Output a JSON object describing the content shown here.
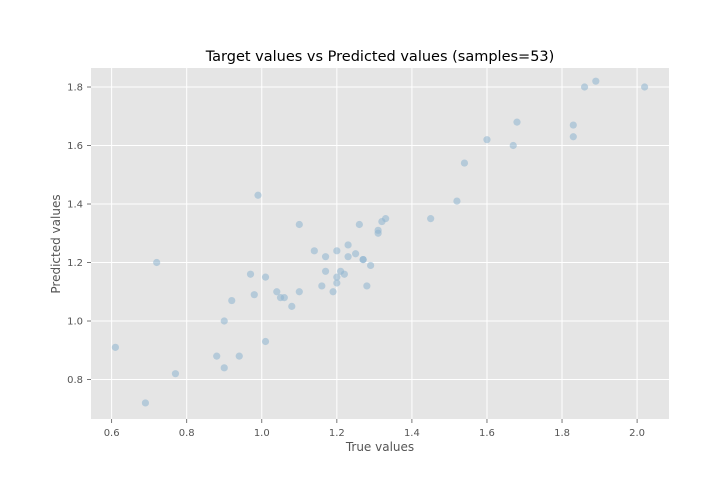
{
  "chart_data": {
    "type": "scatter",
    "title": "Target values vs Predicted values (samples=53)",
    "xlabel": "True values",
    "ylabel": "Predicted values",
    "xlim": [
      0.545,
      2.085
    ],
    "ylim": [
      0.665,
      1.865
    ],
    "xticks": [
      0.6,
      0.8,
      1.0,
      1.2,
      1.4,
      1.6,
      1.8,
      2.0
    ],
    "xtick_labels": [
      "0.6",
      "0.8",
      "1.0",
      "1.2",
      "1.4",
      "1.6",
      "1.8",
      "2.0"
    ],
    "yticks": [
      0.8,
      1.0,
      1.2,
      1.4,
      1.6,
      1.8
    ],
    "ytick_labels": [
      "0.8",
      "1.0",
      "1.2",
      "1.4",
      "1.6",
      "1.8"
    ],
    "grid": true,
    "style": "ggplot",
    "colors": {
      "axes_bg": "#e5e5e5",
      "grid": "#ffffff",
      "marker": "#8eb4cf"
    },
    "x": [
      0.61,
      0.69,
      0.72,
      0.77,
      0.88,
      0.9,
      0.9,
      0.92,
      0.94,
      0.97,
      0.98,
      0.99,
      1.01,
      1.01,
      1.04,
      1.05,
      1.06,
      1.08,
      1.1,
      1.1,
      1.14,
      1.16,
      1.17,
      1.17,
      1.19,
      1.2,
      1.2,
      1.2,
      1.21,
      1.22,
      1.23,
      1.23,
      1.25,
      1.26,
      1.27,
      1.27,
      1.28,
      1.29,
      1.31,
      1.31,
      1.32,
      1.33,
      1.45,
      1.52,
      1.54,
      1.6,
      1.67,
      1.68,
      1.83,
      1.83,
      1.86,
      1.89,
      2.02
    ],
    "y": [
      0.91,
      0.72,
      1.2,
      0.82,
      0.88,
      1.0,
      0.84,
      1.07,
      0.88,
      1.16,
      1.09,
      1.43,
      1.15,
      0.93,
      1.1,
      1.08,
      1.08,
      1.05,
      1.33,
      1.1,
      1.24,
      1.12,
      1.22,
      1.17,
      1.1,
      1.13,
      1.15,
      1.24,
      1.17,
      1.16,
      1.26,
      1.22,
      1.23,
      1.33,
      1.21,
      1.21,
      1.12,
      1.19,
      1.3,
      1.31,
      1.34,
      1.35,
      1.35,
      1.41,
      1.54,
      1.62,
      1.6,
      1.68,
      1.67,
      1.63,
      1.8,
      1.82,
      1.8
    ]
  }
}
